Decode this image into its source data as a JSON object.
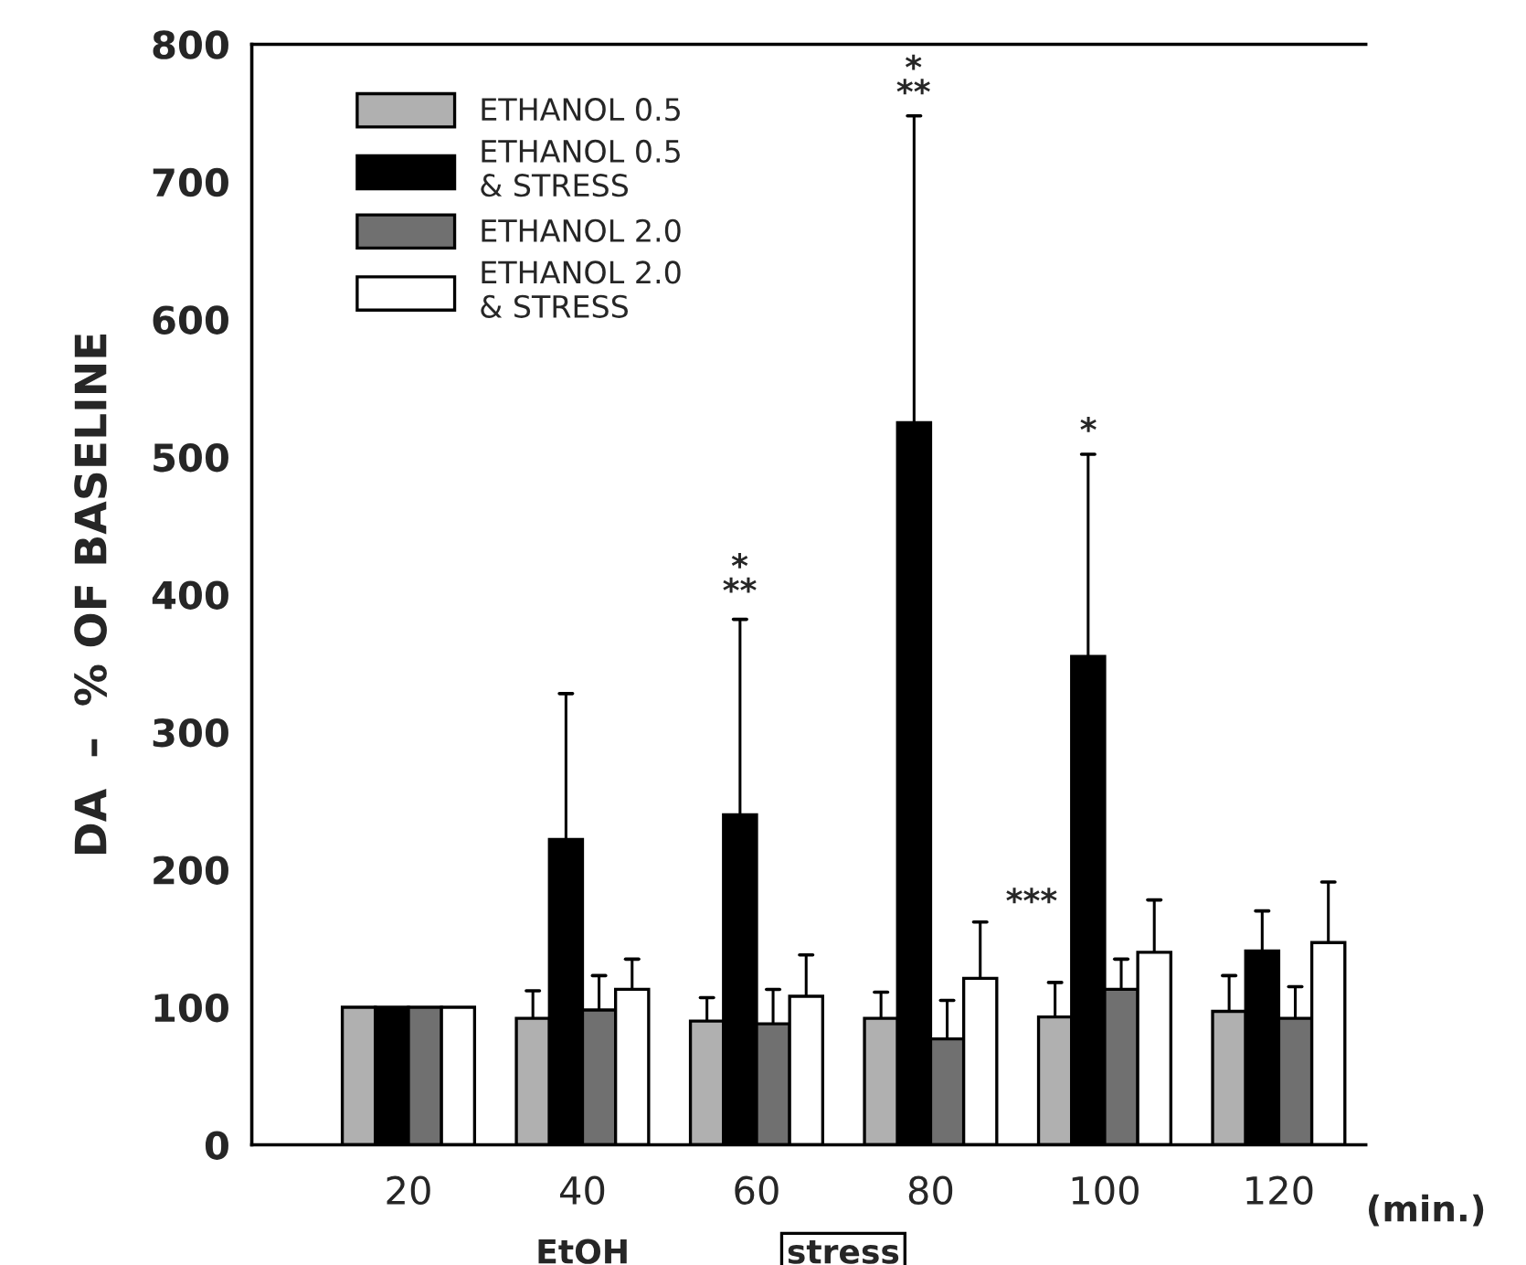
{
  "chart_data": {
    "type": "bar",
    "categories": [
      "20",
      "40",
      "60",
      "80",
      "100",
      "120"
    ],
    "xlabel": "(min.)",
    "ylabel": "DA  –  % OF BASELINE",
    "ylim": [
      0,
      800
    ],
    "yticks": [
      0,
      100,
      200,
      300,
      400,
      500,
      600,
      700,
      800
    ],
    "grid": false,
    "legend": "top left",
    "series": [
      {
        "name": "ETHANOL 0.5",
        "color": "#b0b0b0",
        "values": [
          100,
          92,
          90,
          92,
          93,
          97
        ],
        "errors": [
          null,
          20,
          17,
          19,
          25,
          26
        ]
      },
      {
        "name": "ETHANOL 0.5\n& STRESS",
        "color": "#000000",
        "values": [
          100,
          222,
          240,
          525,
          355,
          141
        ],
        "errors": [
          null,
          106,
          142,
          223,
          147,
          29
        ]
      },
      {
        "name": "ETHANOL 2.0",
        "color": "#707070",
        "values": [
          100,
          98,
          88,
          77,
          113,
          92
        ],
        "errors": [
          null,
          25,
          25,
          28,
          22,
          23
        ]
      },
      {
        "name": "ETHANOL 2.0\n& STRESS",
        "color": "#ffffff",
        "values": [
          100,
          113,
          108,
          121,
          140,
          147
        ],
        "errors": [
          null,
          22,
          30,
          41,
          38,
          44
        ]
      }
    ],
    "annotations": [
      "*\n**",
      "*\n**",
      "*",
      "***",
      "EtOH",
      "stress"
    ]
  }
}
